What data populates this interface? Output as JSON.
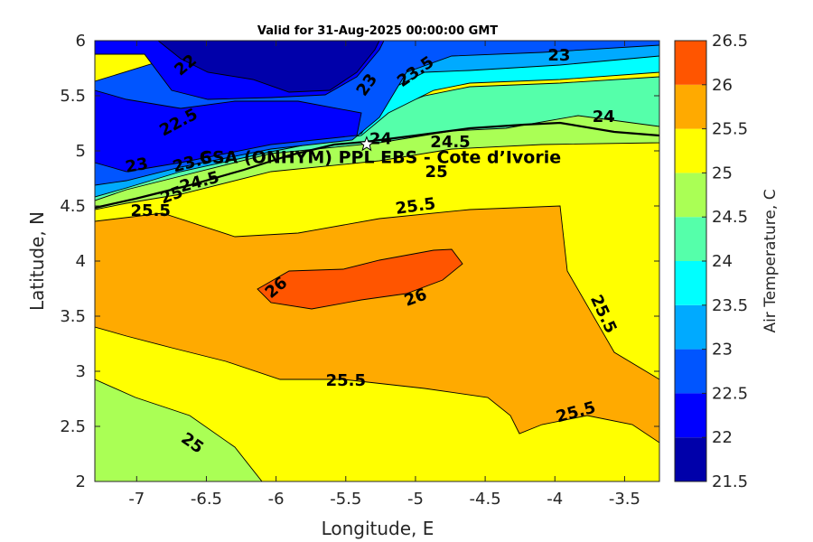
{
  "chart_data": {
    "type": "heatmap",
    "title": "Valid for 31-Aug-2025 00:00:00 GMT",
    "xlabel": "Longitude, E",
    "ylabel": "Latitude, N",
    "xlim": [
      -7.3,
      -3.25
    ],
    "ylim": [
      2,
      6
    ],
    "xticks": [
      "-7",
      "-6.5",
      "-6",
      "-5.5",
      "-5",
      "-4.5",
      "-4",
      "-3.5"
    ],
    "yticks": [
      "2",
      "2.5",
      "3",
      "3.5",
      "4",
      "4.5",
      "5",
      "5.5",
      "6"
    ],
    "colorbar": {
      "label": "Air Temperature, C",
      "levels": [
        21.5,
        22,
        22.5,
        23,
        23.5,
        24,
        24.5,
        25,
        25.5,
        26,
        26.5
      ],
      "ticks": [
        "21.5",
        "22",
        "22.5",
        "23",
        "23.5",
        "24",
        "24.5",
        "25",
        "25.5",
        "26",
        "26.5"
      ],
      "colors": [
        "#0000aa",
        "#0000ff",
        "#0055ff",
        "#00aaff",
        "#00ffff",
        "#55ffaa",
        "#aaff55",
        "#ffff00",
        "#ffaa00",
        "#ff5500",
        "#ff0000"
      ]
    },
    "site": {
      "label": "CSA (ONHYM) PPL EBS  - Cote d’Ivorie",
      "lon": -5.35,
      "lat": 5.06
    },
    "contour_labels": [
      {
        "text": "22",
        "lon": -6.65,
        "lat": 5.78,
        "angle": -40
      },
      {
        "text": "22.5",
        "lon": -6.7,
        "lat": 5.26,
        "angle": -28
      },
      {
        "text": "23",
        "lon": -7.0,
        "lat": 4.87,
        "angle": -10
      },
      {
        "text": "23",
        "lon": -5.35,
        "lat": 5.6,
        "angle": -55
      },
      {
        "text": "23.5",
        "lon": -5.0,
        "lat": 5.72,
        "angle": -35
      },
      {
        "text": "23",
        "lon": -3.97,
        "lat": 5.87,
        "angle": 0
      },
      {
        "text": "24",
        "lon": -5.25,
        "lat": 5.11,
        "angle": 0
      },
      {
        "text": "24.5",
        "lon": -4.75,
        "lat": 5.08,
        "angle": 0
      },
      {
        "text": "24",
        "lon": -3.65,
        "lat": 5.31,
        "angle": 0
      },
      {
        "text": "23.5",
        "lon": -6.6,
        "lat": 4.9,
        "angle": -15
      },
      {
        "text": "24.5",
        "lon": -6.55,
        "lat": 4.72,
        "angle": -15
      },
      {
        "text": "25",
        "lon": -6.75,
        "lat": 4.6,
        "angle": -20
      },
      {
        "text": "25",
        "lon": -4.85,
        "lat": 4.81,
        "angle": 0
      },
      {
        "text": "25.5",
        "lon": -6.9,
        "lat": 4.46,
        "angle": 0
      },
      {
        "text": "25.5",
        "lon": -5.0,
        "lat": 4.5,
        "angle": -8
      },
      {
        "text": "26",
        "lon": -6.0,
        "lat": 3.76,
        "angle": -40
      },
      {
        "text": "26",
        "lon": -5.0,
        "lat": 3.67,
        "angle": -20
      },
      {
        "text": "25.5",
        "lon": -3.65,
        "lat": 3.52,
        "angle": 65
      },
      {
        "text": "25.5",
        "lon": -5.5,
        "lat": 2.92,
        "angle": 0
      },
      {
        "text": "25.5",
        "lon": -3.85,
        "lat": 2.63,
        "angle": -15
      },
      {
        "text": "25",
        "lon": -6.6,
        "lat": 2.35,
        "angle": 35
      }
    ]
  }
}
